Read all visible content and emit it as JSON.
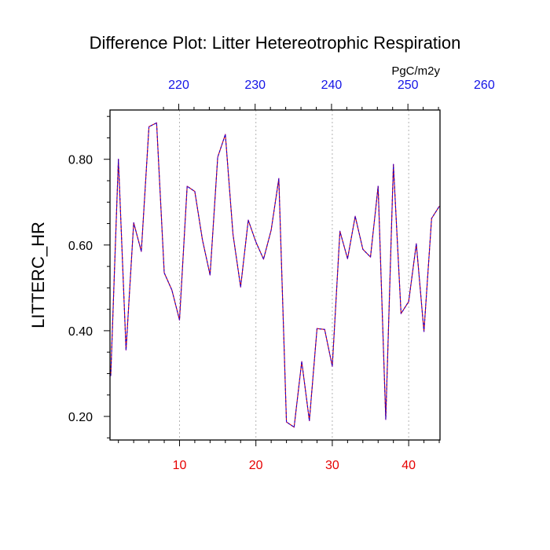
{
  "chart_data": {
    "type": "line",
    "title": "Difference Plot: Litter Hetereotrophic Respiration",
    "ylabel": "LITTERC_HR",
    "top_axis_unit": "PgC/m2y",
    "x": [
      1,
      2,
      3,
      4,
      5,
      6,
      7,
      8,
      9,
      10,
      11,
      12,
      13,
      14,
      15,
      16,
      17,
      18,
      19,
      20,
      21,
      22,
      23,
      24,
      25,
      26,
      27,
      28,
      29,
      30,
      31,
      32,
      33,
      34,
      35,
      36,
      37,
      38,
      39,
      40,
      41,
      42,
      43,
      44
    ],
    "series": [
      {
        "values": [
          0.295,
          0.8,
          0.355,
          0.652,
          0.585,
          0.876,
          0.885,
          0.535,
          0.495,
          0.425,
          0.737,
          0.725,
          0.612,
          0.53,
          0.805,
          0.858,
          0.625,
          0.502,
          0.658,
          0.607,
          0.567,
          0.635,
          0.755,
          0.187,
          0.175,
          0.328,
          0.19,
          0.405,
          0.403,
          0.317,
          0.632,
          0.568,
          0.667,
          0.59,
          0.572,
          0.737,
          0.193,
          0.788,
          0.44,
          0.468,
          0.603,
          0.398,
          0.662,
          0.69
        ],
        "color": "#7f00bf"
      }
    ],
    "xlim": [
      0.9,
      44.1
    ],
    "ylim": [
      0.145,
      0.915
    ],
    "bottom_ticks": {
      "values": [
        10,
        20,
        30,
        40
      ],
      "labels": [
        "10",
        "20",
        "30",
        "40"
      ],
      "color": "#e60000"
    },
    "top_ticks": {
      "values": [
        220,
        230,
        240,
        250,
        260
      ],
      "labels": [
        "220",
        "230",
        "240",
        "250",
        "260"
      ],
      "color": "#1414e6",
      "offset": 210.1
    },
    "y_ticks": {
      "values": [
        0.2,
        0.4,
        0.6,
        0.8
      ],
      "labels": [
        "0.20",
        "0.40",
        "0.60",
        "0.80"
      ]
    },
    "grid": {
      "vertical": true,
      "horizontal": false,
      "style": "dotted",
      "color": "#b3b3b3"
    },
    "line_style": "dashed"
  }
}
